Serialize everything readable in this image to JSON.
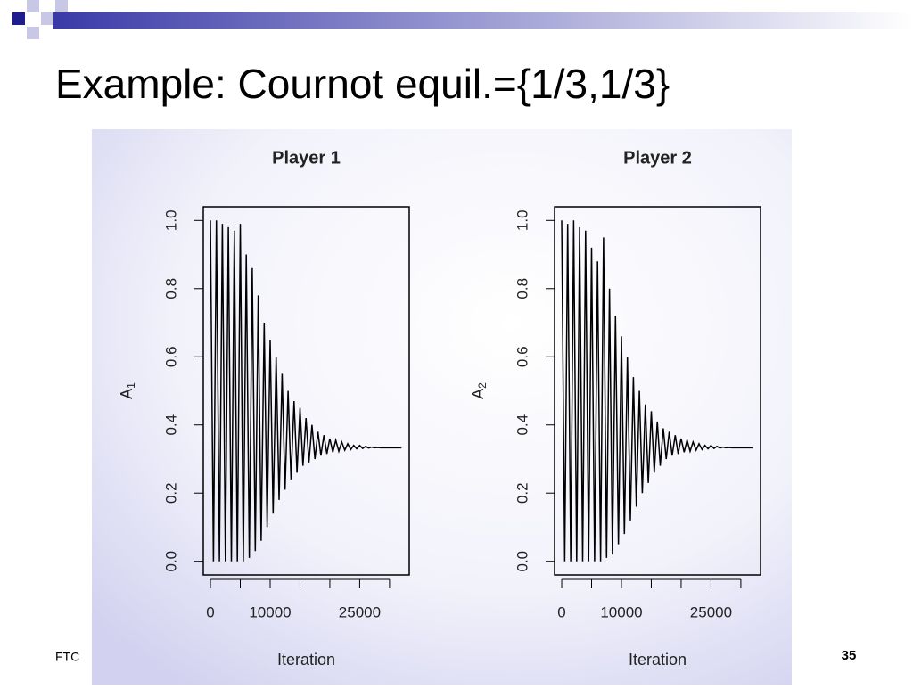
{
  "slide_title": "Example: Cournot equil.={1/3,1/3}",
  "footer": "FTC",
  "page_number": "35",
  "chart_data": [
    {
      "type": "line",
      "title": "Player 1",
      "xlabel": "Iteration",
      "ylabel": "A",
      "ylabel_subscript": "1",
      "color": "#000000",
      "xlim": [
        -1200,
        33300
      ],
      "ylim": [
        -0.04,
        1.04
      ],
      "xticks": [
        0,
        10000,
        25000
      ],
      "xtick_marks": [
        0,
        5000,
        10000,
        15000,
        20000,
        25000,
        30000
      ],
      "yticks": [
        {
          "value": 0,
          "label": "0.0"
        },
        0.2,
        0.4,
        0.6,
        0.8,
        {
          "value": 1,
          "label": "1.0"
        }
      ],
      "x": [
        0,
        500,
        1000,
        1500,
        2000,
        2500,
        3000,
        3500,
        4000,
        4500,
        5000,
        5500,
        6000,
        6500,
        7000,
        7500,
        8000,
        8500,
        9000,
        9500,
        10000,
        10500,
        11000,
        11500,
        12000,
        12500,
        13000,
        13500,
        14000,
        14500,
        15000,
        15500,
        16000,
        16500,
        17000,
        17500,
        18000,
        18500,
        19000,
        19500,
        20000,
        20500,
        21000,
        21500,
        22000,
        22500,
        23000,
        23500,
        24000,
        24500,
        25000,
        25500,
        26000,
        26500,
        27000,
        27500,
        28000,
        28500,
        29000,
        29500,
        30000,
        30500,
        31000,
        31500,
        32000
      ],
      "values": [
        1.0,
        0.0,
        1.0,
        0.0,
        0.99,
        0.0,
        0.98,
        0.0,
        0.97,
        0.0,
        0.99,
        0.0,
        0.9,
        0.01,
        0.86,
        0.03,
        0.78,
        0.06,
        0.7,
        0.1,
        0.65,
        0.14,
        0.6,
        0.18,
        0.55,
        0.21,
        0.5,
        0.24,
        0.47,
        0.26,
        0.45,
        0.28,
        0.42,
        0.29,
        0.4,
        0.3,
        0.38,
        0.31,
        0.37,
        0.315,
        0.36,
        0.32,
        0.355,
        0.323,
        0.35,
        0.326,
        0.345,
        0.328,
        0.34,
        0.33,
        0.34,
        0.331,
        0.337,
        0.332,
        0.335,
        0.333,
        0.334,
        0.333,
        0.333,
        0.333,
        0.333,
        0.333,
        0.333,
        0.333,
        0.333
      ]
    },
    {
      "type": "line",
      "title": "Player 2",
      "xlabel": "Iteration",
      "ylabel": "A",
      "ylabel_subscript": "2",
      "color": "#000000",
      "xlim": [
        -1200,
        33300
      ],
      "ylim": [
        -0.04,
        1.04
      ],
      "xticks": [
        0,
        10000,
        25000
      ],
      "xtick_marks": [
        0,
        5000,
        10000,
        15000,
        20000,
        25000,
        30000
      ],
      "yticks": [
        {
          "value": 0,
          "label": "0.0"
        },
        0.2,
        0.4,
        0.6,
        0.8,
        {
          "value": 1,
          "label": "1.0"
        }
      ],
      "x": [
        0,
        500,
        1000,
        1500,
        2000,
        2500,
        3000,
        3500,
        4000,
        4500,
        5000,
        5500,
        6000,
        6500,
        7000,
        7500,
        8000,
        8500,
        9000,
        9500,
        10000,
        10500,
        11000,
        11500,
        12000,
        12500,
        13000,
        13500,
        14000,
        14500,
        15000,
        15500,
        16000,
        16500,
        17000,
        17500,
        18000,
        18500,
        19000,
        19500,
        20000,
        20500,
        21000,
        21500,
        22000,
        22500,
        23000,
        23500,
        24000,
        24500,
        25000,
        25500,
        26000,
        26500,
        27000,
        27500,
        28000,
        28500,
        29000,
        29500,
        30000,
        30500,
        31000,
        31500,
        32000
      ],
      "values": [
        1.0,
        0.0,
        0.99,
        0.0,
        1.0,
        0.0,
        0.98,
        0.0,
        0.97,
        0.0,
        0.92,
        0.0,
        0.88,
        0.0,
        0.95,
        0.01,
        0.8,
        0.02,
        0.72,
        0.05,
        0.66,
        0.08,
        0.6,
        0.12,
        0.54,
        0.16,
        0.5,
        0.2,
        0.46,
        0.23,
        0.44,
        0.26,
        0.41,
        0.28,
        0.39,
        0.3,
        0.38,
        0.31,
        0.37,
        0.315,
        0.36,
        0.32,
        0.355,
        0.323,
        0.35,
        0.326,
        0.345,
        0.328,
        0.34,
        0.33,
        0.34,
        0.331,
        0.337,
        0.332,
        0.335,
        0.333,
        0.334,
        0.333,
        0.333,
        0.333,
        0.333,
        0.333,
        0.333,
        0.333,
        0.333
      ]
    }
  ]
}
